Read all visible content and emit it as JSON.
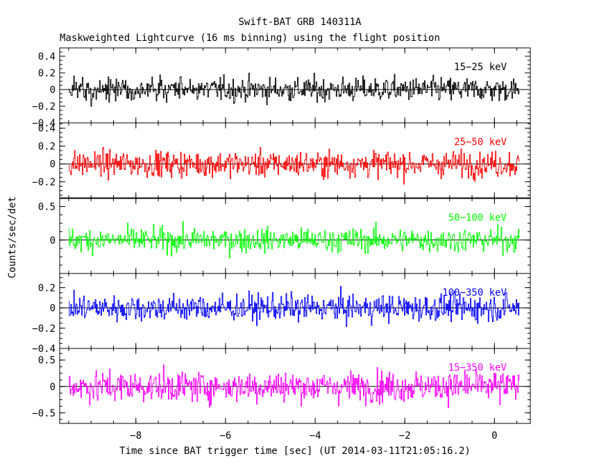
{
  "chart_data": {
    "type": "line",
    "title": "Swift-BAT GRB 140311A",
    "subtitle": "Maskweighted Lightcurve (16 ms binning) using the flight position",
    "xlabel": "Time since BAT trigger time [sec] (UT 2014-03-11T21:05:16.2)",
    "ylabel": "Counts/sec/det",
    "xlim": [
      -9.7,
      0.8
    ],
    "x_ticks": [
      -8,
      -6,
      -4,
      -2,
      0
    ],
    "x_tick_labels": [
      "−8",
      "−6",
      "−4",
      "−2",
      "0"
    ],
    "bin_seconds": 0.016,
    "x_start": -9.5,
    "x_end": 0.55,
    "grid": false,
    "zero_line": true,
    "panels": [
      {
        "name": "15−25 keV",
        "color": "#000000",
        "ylim": [
          -0.4,
          0.5
        ],
        "y_ticks": [
          -0.4,
          -0.2,
          0,
          0.2,
          0.4
        ],
        "y_tick_labels": [
          "−0.4",
          "−0.2",
          "0",
          "0.2",
          "0.4"
        ],
        "noise_amplitude": 0.13
      },
      {
        "name": "25−50 keV",
        "color": "#ff0000",
        "ylim": [
          -0.38,
          0.46
        ],
        "y_ticks": [
          -0.2,
          0,
          0.2,
          0.4
        ],
        "y_tick_labels": [
          "−0.2",
          "0",
          "0.2",
          "0.4"
        ],
        "noise_amplitude": 0.13
      },
      {
        "name": "50−100 keV",
        "color": "#00ff00",
        "ylim": [
          -0.5,
          0.62
        ],
        "y_ticks": [
          0,
          0.5
        ],
        "y_tick_labels": [
          "0",
          "0.5"
        ],
        "noise_amplitude": 0.16
      },
      {
        "name": "100−350 keV",
        "color": "#0000ff",
        "ylim": [
          -0.4,
          0.34
        ],
        "y_ticks": [
          -0.4,
          -0.2,
          0,
          0.2
        ],
        "y_tick_labels": [
          "−0.4",
          "−0.2",
          "0",
          "0.2"
        ],
        "noise_amplitude": 0.12
      },
      {
        "name": "15−350 keV",
        "color": "#ff00ff",
        "ylim": [
          -0.7,
          0.72
        ],
        "y_ticks": [
          -0.5,
          0,
          0.5
        ],
        "y_tick_labels": [
          "−0.5",
          "0",
          "0.5"
        ],
        "noise_amplitude": 0.26
      }
    ]
  }
}
